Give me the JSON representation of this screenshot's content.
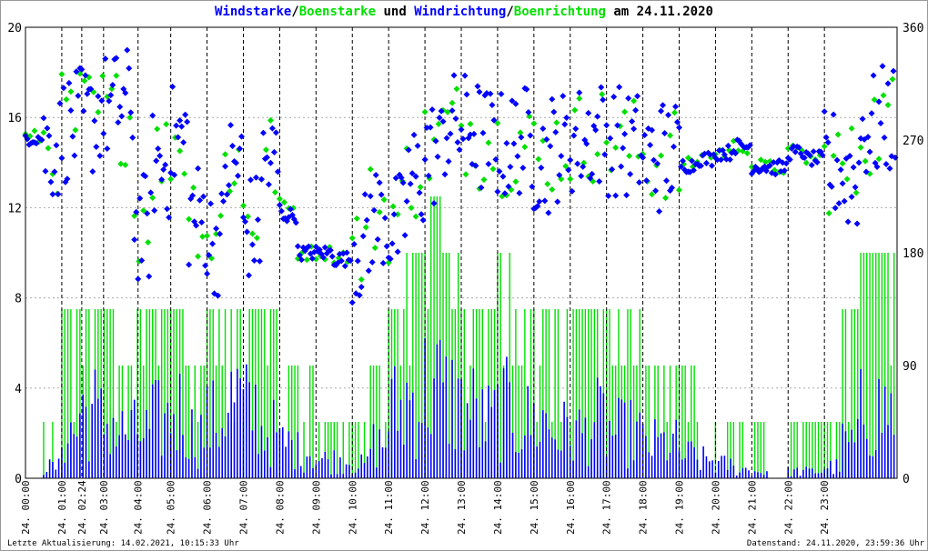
{
  "chart_data": {
    "type": "line",
    "title_parts": [
      {
        "text": "Windstarke",
        "color": "#0000ff"
      },
      {
        "text": "/",
        "color": "#000000"
      },
      {
        "text": "Boenstarke",
        "color": "#00e000"
      },
      {
        "text": " und ",
        "color": "#000000"
      },
      {
        "text": "Windrichtung",
        "color": "#0000ff"
      },
      {
        "text": "/",
        "color": "#000000"
      },
      {
        "text": "Boenrichtung",
        "color": "#00e000"
      },
      {
        "text": " am 24.11.2020",
        "color": "#000000"
      }
    ],
    "ylim_left": [
      0,
      20
    ],
    "yticks_left": [
      "0",
      "4",
      "8",
      "12",
      "16",
      "20"
    ],
    "ylim_right": [
      0,
      360
    ],
    "yticks_right": [
      "0",
      "90",
      "180",
      "270",
      "360"
    ],
    "xlim_hours": [
      0,
      24
    ],
    "xticks": [
      {
        "h": 0,
        "label": "24. 00:00"
      },
      {
        "h": 1,
        "label": "24. 01:00"
      },
      {
        "h": 1.55,
        "label": "24. 02:24"
      },
      {
        "h": 2.15,
        "label": "24. 03:00"
      },
      {
        "h": 3.1,
        "label": "24. 04:00"
      },
      {
        "h": 4.0,
        "label": "24. 05:00"
      },
      {
        "h": 5.0,
        "label": "24. 06:00"
      },
      {
        "h": 6.0,
        "label": "24. 07:00"
      },
      {
        "h": 7.0,
        "label": "24. 08:00"
      },
      {
        "h": 8.0,
        "label": "24. 09:00"
      },
      {
        "h": 9.0,
        "label": "24. 10:00"
      },
      {
        "h": 10.0,
        "label": "24. 11:00"
      },
      {
        "h": 11.0,
        "label": "24. 12:00"
      },
      {
        "h": 12.0,
        "label": "24. 13:00"
      },
      {
        "h": 13.0,
        "label": "24. 14:00"
      },
      {
        "h": 14.0,
        "label": "24. 15:00"
      },
      {
        "h": 15.0,
        "label": "24. 16:00"
      },
      {
        "h": 16.0,
        "label": "24. 17:00"
      },
      {
        "h": 17.0,
        "label": "24. 18:00"
      },
      {
        "h": 18.0,
        "label": "24. 19:00"
      },
      {
        "h": 19.0,
        "label": "24. 20:00"
      },
      {
        "h": 20.0,
        "label": "24. 21:00"
      },
      {
        "h": 21.0,
        "label": "24. 22:00"
      },
      {
        "h": 22.0,
        "label": "24. 23:00"
      }
    ],
    "series": [
      {
        "name": "Windstarke",
        "color": "#0000ff",
        "axis": "left",
        "step_hours": 0.5,
        "values": [
          0,
          0.5,
          2,
          3,
          2.5,
          2,
          2,
          2.5,
          3,
          2,
          2.5,
          3.5,
          3,
          2,
          1.5,
          1.2,
          0.8,
          0.8,
          0.6,
          1.5,
          3,
          3.5,
          4,
          3.5,
          3,
          2.5,
          3,
          2.5,
          2.5,
          2,
          2,
          2.5,
          2,
          2,
          1.5,
          1.5,
          1,
          0.8,
          0.6,
          0.4,
          0.3,
          0,
          0.3,
          0.3,
          0.5,
          1.5,
          3,
          3
        ]
      },
      {
        "name": "Boenstarke",
        "color": "#00e000",
        "axis": "left",
        "step_hours": 0.5,
        "values": [
          0,
          2.5,
          7.5,
          7.5,
          7.5,
          5,
          7.5,
          7.5,
          7.5,
          5,
          7.5,
          7.5,
          7.5,
          7.5,
          5,
          5,
          2.5,
          2.5,
          2.5,
          5,
          7.5,
          10,
          12.5,
          10,
          7.5,
          7.5,
          10,
          7.5,
          7.5,
          7.5,
          7.5,
          7.5,
          7.5,
          7.5,
          5,
          5,
          5,
          2.5,
          2.5,
          2.5,
          2.5,
          0,
          2.5,
          2.5,
          2.5,
          7.5,
          10,
          10
        ]
      },
      {
        "name": "Windrichtung",
        "color": "#0000ff",
        "axis": "right",
        "step_hours": 0.5,
        "values": [
          272,
          265,
          280,
          285,
          295,
          300,
          200,
          250,
          270,
          210,
          190,
          250,
          200,
          250,
          210,
          180,
          180,
          175,
          185,
          210,
          200,
          240,
          260,
          280,
          280,
          270,
          265,
          270,
          255,
          265,
          270,
          275,
          270,
          265,
          255,
          260,
          250,
          255,
          260,
          265,
          249,
          248,
          260,
          255,
          250,
          240,
          280,
          285
        ]
      },
      {
        "name": "Boenrichtung",
        "color": "#00e000",
        "axis": "right",
        "step_hours": 0.5,
        "values": [
          272,
          265,
          285,
          290,
          290,
          290,
          210,
          255,
          270,
          215,
          195,
          255,
          210,
          255,
          215,
          180,
          180,
          178,
          185,
          215,
          210,
          245,
          265,
          280,
          280,
          270,
          265,
          270,
          255,
          265,
          270,
          275,
          270,
          265,
          255,
          260,
          250,
          255,
          260,
          265,
          249,
          248,
          260,
          255,
          250,
          245,
          280,
          285
        ]
      }
    ]
  },
  "footer": {
    "left": "Letzte Aktualisierung: 14.02.2021, 10:15:33 Uhr",
    "right": "Datenstand: 24.11.2020, 23:59:36 Uhr"
  }
}
